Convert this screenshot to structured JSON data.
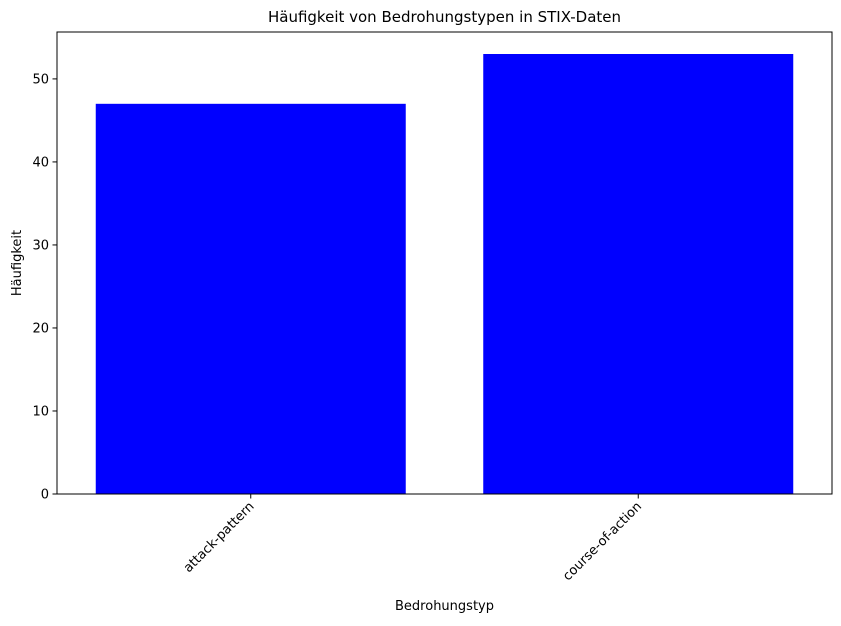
{
  "chart_data": {
    "type": "bar",
    "title": "Häufigkeit von Bedrohungstypen in STIX-Daten",
    "xlabel": "Bedrohungstyp",
    "ylabel": "Häufigkeit",
    "categories": [
      "attack-pattern",
      "course-of-action"
    ],
    "values": [
      47,
      53
    ],
    "ylim": [
      0,
      55.65
    ],
    "yticks": [
      0,
      10,
      20,
      30,
      40,
      50
    ],
    "xtick_rotation": 45,
    "grid": false,
    "legend": "none",
    "bar_color": "#0000ff"
  }
}
